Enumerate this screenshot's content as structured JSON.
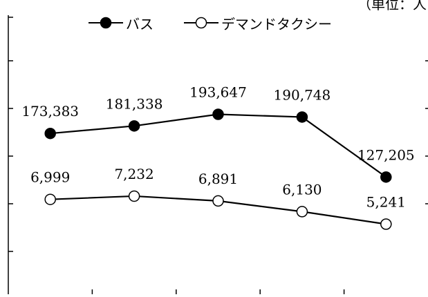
{
  "unit_label": "（単位：人",
  "chart_data": {
    "type": "line",
    "title": "",
    "xlabel": "",
    "ylabel": "",
    "categories": [
      "",
      "",
      "",
      "",
      ""
    ],
    "series": [
      {
        "name": "バス",
        "values": [
          173383,
          181338,
          193647,
          190748,
          127205
        ],
        "labels": [
          "173,383",
          "181,338",
          "193,647",
          "190,748",
          "127,205"
        ],
        "marker": "filled-circle",
        "color": "#000000"
      },
      {
        "name": "デマンドタクシー",
        "values": [
          6999,
          7232,
          6891,
          6130,
          5241
        ],
        "labels": [
          "6,999",
          "7,232",
          "6,891",
          "6,130",
          "5,241"
        ],
        "marker": "open-circle",
        "color": "#000000"
      }
    ],
    "legend_position": "top",
    "grid": false
  }
}
